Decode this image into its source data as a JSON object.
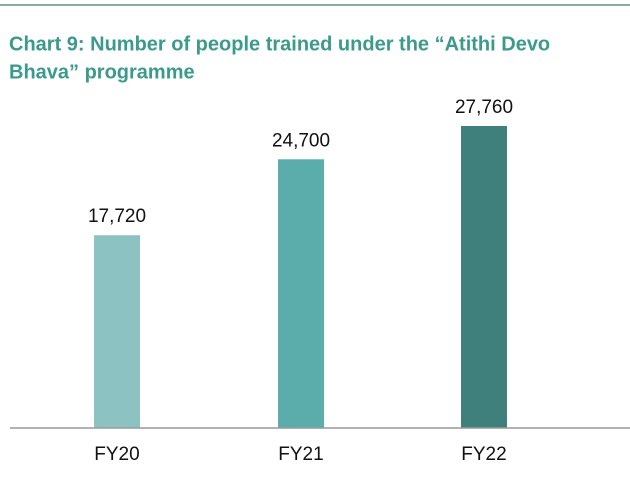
{
  "chart_data": {
    "type": "bar",
    "title_lines": [
      "Chart 9: Number of people trained under the “Atithi Devo",
      "Bhava” programme"
    ],
    "categories": [
      "FY20",
      "FY21",
      "FY22"
    ],
    "values": [
      17720,
      24700,
      27760
    ],
    "value_labels": [
      "17,720",
      "24,700",
      "27,760"
    ],
    "colors": [
      "#8cc2c1",
      "#5badac",
      "#3f7f7c"
    ]
  }
}
